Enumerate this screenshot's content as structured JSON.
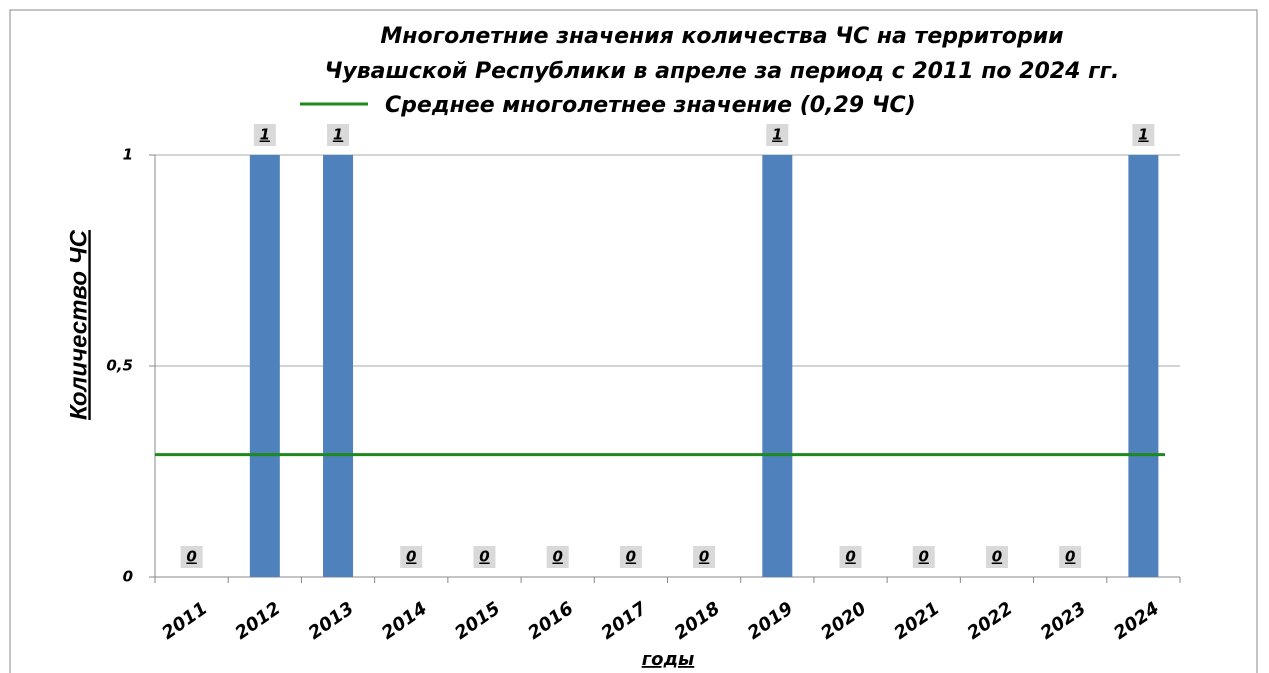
{
  "chart_data": {
    "type": "bar",
    "title": [
      "Многолетние значения количества ЧС на территории",
      "Чувашской Республики в апреле за период с 2011 по 2024 гг."
    ],
    "categories": [
      "2011",
      "2012",
      "2013",
      "2014",
      "2015",
      "2016",
      "2017",
      "2018",
      "2019",
      "2020",
      "2021",
      "2022",
      "2023",
      "2024"
    ],
    "values": [
      0,
      1,
      1,
      0,
      0,
      0,
      0,
      0,
      1,
      0,
      0,
      0,
      0,
      1
    ],
    "color": "#4f81bd",
    "y_label": "Количество ЧС",
    "x_label": "годы",
    "ylim": [
      0,
      1
    ],
    "yticks": [
      0,
      {
        "value": 0.5,
        "label": "0,5"
      },
      1
    ],
    "grid": true,
    "reference_line": {
      "name": "Среднее многолетнее значение (0,29 ЧС)",
      "value": 0.29,
      "color": "#1e8a1e"
    }
  }
}
